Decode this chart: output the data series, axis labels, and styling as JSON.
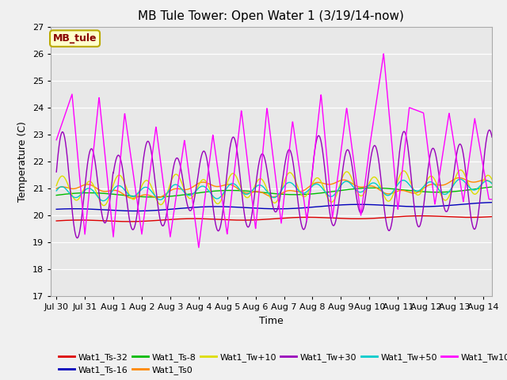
{
  "title": "MB Tule Tower: Open Water 1 (3/19/14-now)",
  "xlabel": "Time",
  "ylabel": "Temperature (C)",
  "ylim": [
    17.0,
    27.0
  ],
  "yticks": [
    17.0,
    18.0,
    19.0,
    20.0,
    21.0,
    22.0,
    23.0,
    24.0,
    25.0,
    26.0,
    27.0
  ],
  "fig_facecolor": "#f0f0f0",
  "ax_facecolor": "#e8e8e8",
  "legend_label": "MB_tule",
  "series_colors": {
    "Wat1_Ts-32": "#dd0000",
    "Wat1_Ts-16": "#0000bb",
    "Wat1_Ts-8": "#00bb00",
    "Wat1_Ts0": "#ff8800",
    "Wat1_Tw+10": "#dddd00",
    "Wat1_Tw+30": "#9900bb",
    "Wat1_Tw+50": "#00cccc",
    "Wat1_Tw100": "#ff00ff"
  },
  "x_tick_labels": [
    "Jul 30",
    "Jul 31",
    "Aug 1",
    "Aug 2",
    "Aug 3",
    "Aug 4",
    "Aug 5",
    "Aug 6",
    "Aug 7",
    "Aug 8",
    "Aug 9",
    "Aug 10",
    "Aug 11",
    "Aug 12",
    "Aug 13",
    "Aug 14"
  ],
  "x_tick_positions": [
    0,
    1,
    2,
    3,
    4,
    5,
    6,
    7,
    8,
    9,
    10,
    11,
    12,
    13,
    14,
    15
  ],
  "tw100_peak_times": [
    0.0,
    0.55,
    1.0,
    1.5,
    2.0,
    2.4,
    3.0,
    3.5,
    4.0,
    4.5,
    5.0,
    5.5,
    6.0,
    6.5,
    7.0,
    7.4,
    7.9,
    8.3,
    8.8,
    9.3,
    9.7,
    10.2,
    10.7,
    11.0,
    11.5,
    12.0,
    12.4,
    12.9,
    13.3,
    13.8,
    14.3,
    14.7,
    15.2
  ],
  "tw100_peak_vals": [
    22.8,
    24.5,
    19.3,
    24.4,
    19.2,
    23.8,
    19.3,
    23.3,
    19.2,
    22.8,
    18.8,
    23.0,
    19.3,
    23.9,
    19.5,
    24.0,
    19.7,
    23.5,
    19.8,
    24.5,
    19.9,
    24.0,
    20.0,
    22.5,
    26.0,
    20.2,
    24.0,
    23.8,
    20.4,
    23.8,
    20.5,
    23.6,
    20.6
  ]
}
